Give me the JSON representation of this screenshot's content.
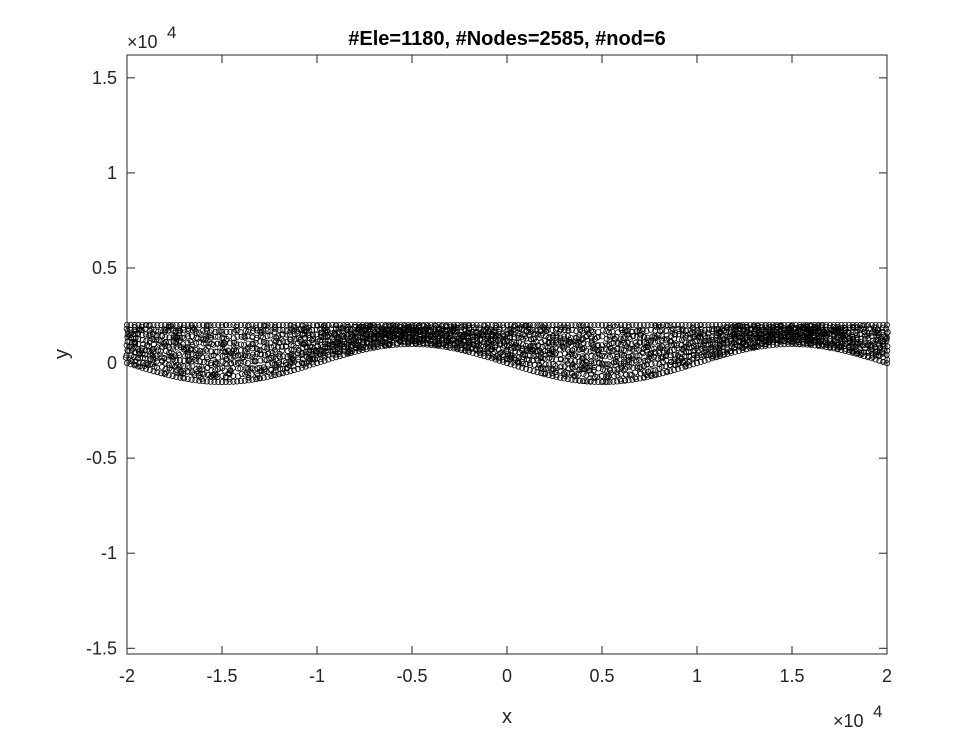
{
  "chart_data": {
    "type": "scatter",
    "title": "#Ele=1180, #Nodes=2585, #nod=6",
    "xlabel": "x",
    "ylabel": "y",
    "x_exponent": {
      "base": "×10",
      "power": "4"
    },
    "y_exponent": {
      "base": "×10",
      "power": "4"
    },
    "xlim": [
      -2,
      2
    ],
    "ylim": [
      -1.53,
      1.62
    ],
    "xticks": [
      -2,
      -1.5,
      -1,
      -0.5,
      0,
      0.5,
      1,
      1.5,
      2
    ],
    "yticks": [
      -1.5,
      -1,
      -0.5,
      0,
      0.5,
      1,
      1.5
    ],
    "xtick_labels": [
      "-2",
      "-1.5",
      "-1",
      "-0.5",
      "0",
      "0.5",
      "1",
      "1.5",
      "2"
    ],
    "ytick_labels": [
      "-1.5",
      "-1",
      "-0.5",
      "0",
      "0.5",
      "1",
      "1.5"
    ],
    "mesh": {
      "description_of_domain": "top boundary y = 0.2, bottom boundary y = -0.1·sin(π·x)",
      "top_y": 0.2,
      "bottom_amplitude": 0.1,
      "bottom_period": 2,
      "marker": "open circle",
      "marker_color": "#000000"
    },
    "grid": false,
    "box": true
  }
}
